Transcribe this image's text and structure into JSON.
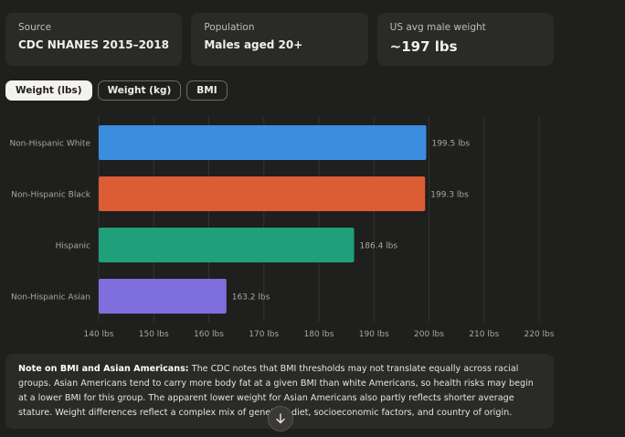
{
  "stats": [
    {
      "label": "Source",
      "value": "CDC NHANES 2015–2018"
    },
    {
      "label": "Population",
      "value": "Males aged 20+"
    },
    {
      "label": "US avg male weight",
      "value": "~197 lbs"
    }
  ],
  "tabs": [
    {
      "label": "Weight (lbs)",
      "active": true
    },
    {
      "label": "Weight (kg)",
      "active": false
    },
    {
      "label": "BMI",
      "active": false
    }
  ],
  "chart_data": {
    "type": "bar",
    "orientation": "horizontal",
    "categories": [
      "Non-Hispanic White",
      "Non-Hispanic Black",
      "Hispanic",
      "Non-Hispanic Asian"
    ],
    "values": [
      199.5,
      199.3,
      186.4,
      163.2
    ],
    "value_labels": [
      "199.5 lbs",
      "199.3 lbs",
      "186.4 lbs",
      "163.2 lbs"
    ],
    "colors": [
      "#3b8de0",
      "#dc5c33",
      "#1fa07a",
      "#7f6fdc"
    ],
    "xlim": [
      140,
      220
    ],
    "xticks": [
      140,
      150,
      160,
      170,
      180,
      190,
      200,
      210,
      220
    ],
    "xtick_labels": [
      "140 lbs",
      "150 lbs",
      "160 lbs",
      "170 lbs",
      "180 lbs",
      "190 lbs",
      "200 lbs",
      "210 lbs",
      "220 lbs"
    ],
    "grid": true,
    "title": "",
    "xlabel": "",
    "ylabel": ""
  },
  "note": {
    "title": "Note on BMI and Asian Americans:",
    "body": "The CDC notes that BMI thresholds may not translate equally across racial groups. Asian Americans tend to carry more body fat at a given BMI than white Americans, so health risks may begin at a lower BMI for this group. The apparent lower weight for Asian Americans also partly reflects shorter average stature. Weight differences reflect a complex mix of genetics, diet, socioeconomic factors, and country of origin."
  },
  "icons": {
    "scroll": "arrow-down-icon"
  }
}
